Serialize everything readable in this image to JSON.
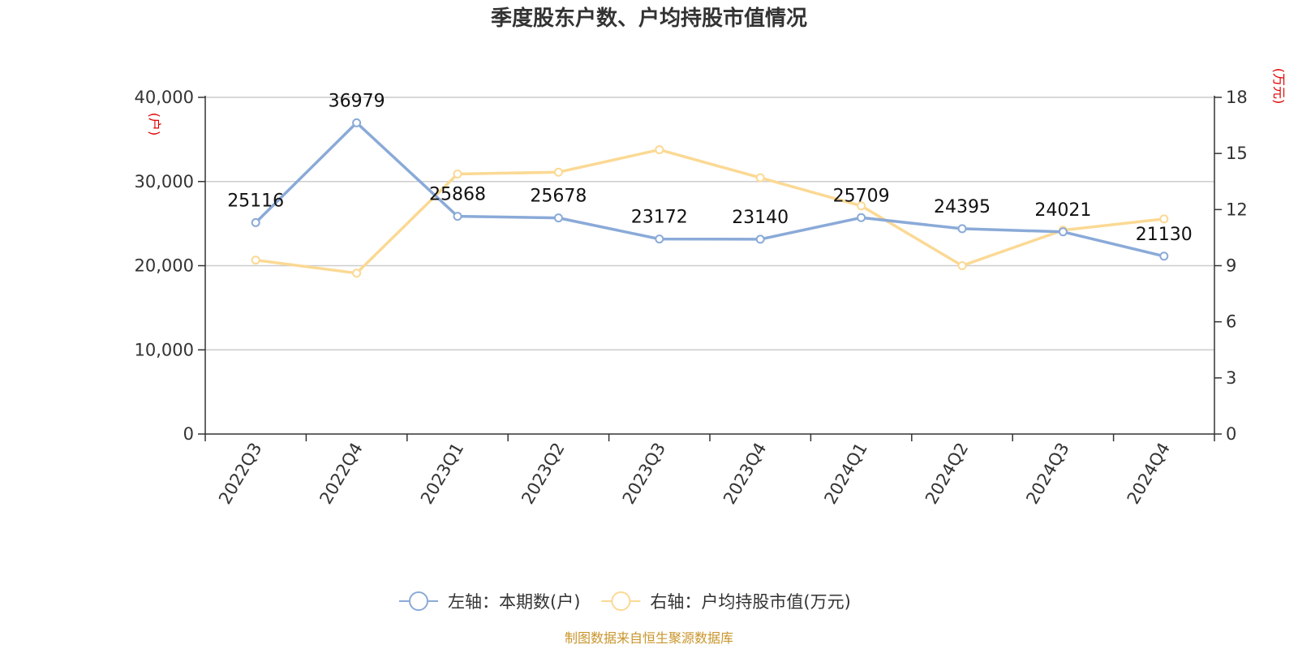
{
  "chart_data": {
    "type": "line",
    "title": "季度股东户数、户均持股市值情况",
    "categories": [
      "2022Q3",
      "2022Q4",
      "2023Q1",
      "2023Q2",
      "2023Q3",
      "2023Q4",
      "2024Q1",
      "2024Q2",
      "2024Q3",
      "2024Q4"
    ],
    "left_axis": {
      "unit": "(户)",
      "ylim": [
        0,
        40000
      ],
      "ticks": [
        "0",
        "10,000",
        "20,000",
        "30,000",
        "40,000"
      ],
      "tick_values": [
        0,
        10000,
        20000,
        30000,
        40000
      ]
    },
    "right_axis": {
      "unit": "(万元)",
      "ylim": [
        0,
        18
      ],
      "ticks": [
        "0",
        "3",
        "6",
        "9",
        "12",
        "15",
        "18"
      ],
      "tick_values": [
        0,
        3,
        6,
        9,
        12,
        15,
        18
      ]
    },
    "series": [
      {
        "name": "左轴：本期数(户)",
        "axis": "left",
        "color": "#8aaad8",
        "values": [
          25116,
          36979,
          25868,
          25678,
          23172,
          23140,
          25709,
          24395,
          24021,
          21130
        ],
        "labels": [
          "25116",
          "36979",
          "25868",
          "25678",
          "23172",
          "23140",
          "25709",
          "24395",
          "24021",
          "21130"
        ]
      },
      {
        "name": "右轴：户均持股市值(万元)",
        "axis": "right",
        "color": "#fbd994",
        "values": [
          9.3,
          8.6,
          13.9,
          14.0,
          15.2,
          13.7,
          12.2,
          9.0,
          10.9,
          11.5
        ]
      }
    ],
    "grid": true,
    "legend": "bottom-center",
    "source": "制图数据来自恒生聚源数据库"
  }
}
